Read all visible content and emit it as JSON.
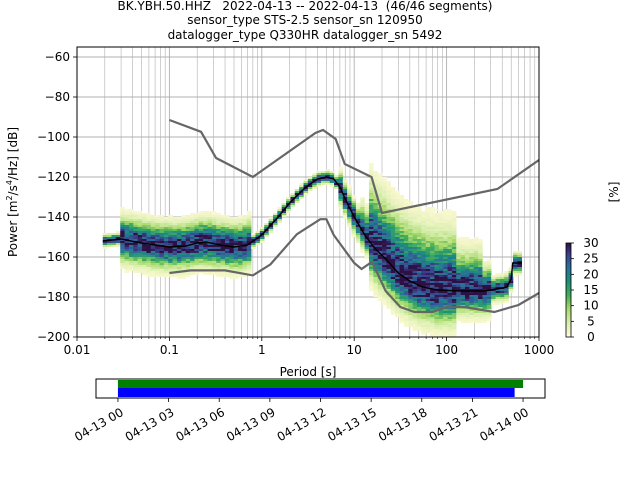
{
  "title_lines": [
    "BK.YBH.50.HHZ   2022-04-13 -- 2022-04-13  (46/46 segments)",
    "sensor_type STS-2.5 sensor_sn 120950",
    "datalogger_type Q330HR datalogger_sn 5492"
  ],
  "chart_data": [
    {
      "type": "heatmap",
      "name": "ppsd",
      "xlabel": "Period [s]",
      "ylabel_parts": [
        "Power [m",
        "2",
        "/s",
        "4",
        "/Hz] [dB]"
      ],
      "xscale": "log",
      "xlim": [
        0.01,
        1000
      ],
      "ylim": [
        -200,
        -55
      ],
      "x_ticks": [
        0.01,
        0.1,
        1,
        10,
        100,
        1000
      ],
      "x_tick_labels": [
        "0.01",
        "0.1",
        "1",
        "10",
        "100",
        "1000"
      ],
      "y_ticks": [
        -200,
        -180,
        -160,
        -140,
        -120,
        -100,
        -80,
        -60
      ],
      "y_tick_labels": [
        "−200",
        "−180",
        "−160",
        "−140",
        "−120",
        "−100",
        "−80",
        "−60"
      ],
      "grid": true,
      "mean_curve": {
        "name": "mean",
        "color": "#000000",
        "points": [
          [
            0.019,
            -152
          ],
          [
            0.03,
            -151
          ],
          [
            0.05,
            -153
          ],
          [
            0.1,
            -155
          ],
          [
            0.15,
            -154.5
          ],
          [
            0.2,
            -153
          ],
          [
            0.25,
            -152.5
          ],
          [
            0.35,
            -154
          ],
          [
            0.5,
            -155
          ],
          [
            0.7,
            -154
          ],
          [
            1,
            -149
          ],
          [
            1.5,
            -140
          ],
          [
            2,
            -133
          ],
          [
            3,
            -125
          ],
          [
            4,
            -121
          ],
          [
            5,
            -120
          ],
          [
            6,
            -121
          ],
          [
            7,
            -125
          ],
          [
            8,
            -131
          ],
          [
            10,
            -140
          ],
          [
            13,
            -149
          ],
          [
            17,
            -156
          ],
          [
            22,
            -161
          ],
          [
            30,
            -168
          ],
          [
            40,
            -172
          ],
          [
            55,
            -175
          ],
          [
            80,
            -176.5
          ],
          [
            150,
            -177
          ],
          [
            250,
            -177
          ],
          [
            350,
            -176
          ],
          [
            450,
            -175
          ],
          [
            500,
            -171
          ],
          [
            520,
            -163
          ],
          [
            650,
            -163
          ]
        ]
      },
      "noise_models": [
        {
          "name": "new-high-noise-model",
          "color": "#666666",
          "points": [
            [
              0.1,
              -91.5
            ],
            [
              0.22,
              -97.4
            ],
            [
              0.32,
              -110.5
            ],
            [
              0.8,
              -120
            ],
            [
              3.8,
              -98
            ],
            [
              4.6,
              -96.5
            ],
            [
              6.3,
              -101
            ],
            [
              7.9,
              -113.5
            ],
            [
              15.4,
              -120
            ],
            [
              20,
              -138
            ],
            [
              354.8,
              -126
            ],
            [
              1000,
              -111.5
            ]
          ]
        },
        {
          "name": "new-low-noise-model",
          "color": "#666666",
          "points": [
            [
              0.1,
              -168
            ],
            [
              0.17,
              -166.7
            ],
            [
              0.4,
              -166.7
            ],
            [
              0.8,
              -169.2
            ],
            [
              1.24,
              -163.7
            ],
            [
              2.4,
              -148.6
            ],
            [
              4.3,
              -141.1
            ],
            [
              5,
              -141.1
            ],
            [
              6,
              -149
            ],
            [
              10,
              -163
            ],
            [
              12,
              -166
            ],
            [
              15.6,
              -162.4
            ],
            [
              21.9,
              -177
            ],
            [
              31.6,
              -185
            ],
            [
              45,
              -187.5
            ],
            [
              70,
              -187.5
            ],
            [
              101,
              -185
            ],
            [
              154,
              -185
            ],
            [
              328,
              -187.5
            ],
            [
              600,
              -184
            ],
            [
              1000,
              -178
            ]
          ]
        }
      ],
      "colorbar": {
        "label": "[%]",
        "min": 0,
        "max": 30,
        "ticks": [
          0,
          5,
          10,
          15,
          20,
          25,
          30
        ],
        "tick_labels": [
          "0",
          "5",
          "10",
          "15",
          "20",
          "25",
          "30"
        ],
        "colormap": "pqlx"
      }
    },
    {
      "type": "timeline",
      "name": "data-coverage",
      "x_ticks": [
        "04-13 00",
        "04-13 03",
        "04-13 06",
        "04-13 09",
        "04-13 12",
        "04-13 15",
        "04-13 18",
        "04-13 21",
        "04-14 00"
      ],
      "xlim_hours": [
        -1.3,
        25.3
      ],
      "bars": [
        {
          "name": "processed-segments",
          "start_hours": 0,
          "end_hours": 24.0,
          "color": "#008000"
        },
        {
          "name": "data-coverage",
          "start_hours": 0,
          "end_hours": 23.5,
          "color": "#0000ff"
        }
      ]
    }
  ]
}
